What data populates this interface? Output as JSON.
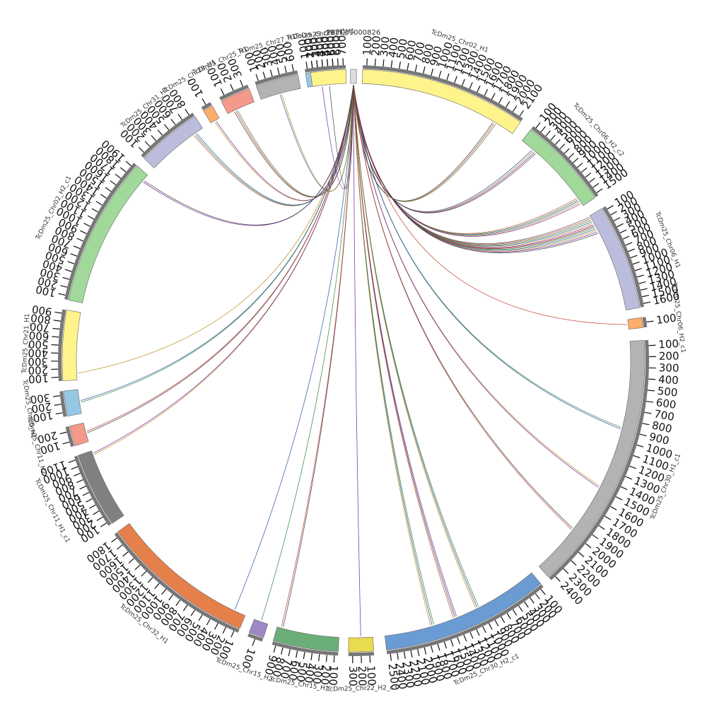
{
  "center_label": "PBFC01000826",
  "segments": [
    {
      "name": "TcDm25_Chr02_H1",
      "color": "#FFF38C",
      "ticks": [
        "100",
        "200",
        "300",
        "400",
        "500",
        "600",
        "700",
        "800",
        "900",
        "1000",
        "1100",
        "1200",
        "1300",
        "1400",
        "1500",
        "1600",
        "1700",
        "1800",
        "1900",
        "2000",
        "2100"
      ]
    },
    {
      "name": "TcDm25_Chr06_H2_c2",
      "color": "#A1D99B",
      "ticks": [
        "100",
        "200",
        "300",
        "400",
        "500",
        "600",
        "700",
        "800",
        "900",
        "1000",
        "1100",
        "1200",
        "1300",
        "1400",
        "1500"
      ]
    },
    {
      "name": "TcDm25_Chr06_H1",
      "color": "#BCBDDC",
      "ticks": [
        "100",
        "200",
        "300",
        "400",
        "500",
        "600",
        "700",
        "800",
        "900",
        "1000",
        "1100",
        "1200",
        "1300",
        "1400",
        "1500",
        "1600"
      ]
    },
    {
      "name": "TcDm25_Chr06_H2_c1",
      "color": "#FDAE6B",
      "ticks": [
        "100"
      ]
    },
    {
      "name": "TcDm25_Chr30_H1_c1",
      "color": "#B3B3B3",
      "ticks": [
        "100",
        "200",
        "300",
        "400",
        "500",
        "600",
        "700",
        "800",
        "900",
        "1000",
        "1100",
        "1200",
        "1300",
        "1400",
        "1500",
        "1600",
        "1700",
        "1800",
        "1900",
        "2000",
        "2100",
        "2200",
        "2300",
        "2400"
      ]
    },
    {
      "name": "TcDm25_Chr30_H2_c1",
      "color": "#6A9BD3",
      "ticks": [
        "100",
        "200",
        "300",
        "400",
        "500",
        "600",
        "700",
        "800",
        "900",
        "1000",
        "1100",
        "1200",
        "1300",
        "1400",
        "1500",
        "1600",
        "1700",
        "1800",
        "1900",
        "2000",
        "2100",
        "2200",
        "2300",
        "2400",
        "2500"
      ]
    },
    {
      "name": "TcDm25_Chr22_H2_c3",
      "color": "#E8DB4E",
      "ticks": [
        "100",
        "200",
        "300"
      ]
    },
    {
      "name": "TcDm25_Chr15_H1",
      "color": "#6BAE7A",
      "ticks": [
        "100",
        "200",
        "300",
        "400",
        "500",
        "600",
        "700",
        "800",
        "900"
      ]
    },
    {
      "name": "TcDm25_Chr15_H2",
      "color": "#9E88C6",
      "ticks": [
        "100"
      ]
    },
    {
      "name": "TcDm25_Chr32_H1",
      "color": "#E6804A",
      "ticks": [
        "100",
        "200",
        "300",
        "400",
        "500",
        "600",
        "700",
        "800",
        "900",
        "1000",
        "1100",
        "1200",
        "1300",
        "1400",
        "1500",
        "1600",
        "1700",
        "1800"
      ]
    },
    {
      "name": "TcDm25_Chr11_H1_c1",
      "color": "#808080",
      "ticks": [
        "100",
        "200",
        "300",
        "400",
        "500",
        "600",
        "700",
        "800",
        "900",
        "1000",
        "1100"
      ]
    },
    {
      "name": "TcDm25_Chr11_H2",
      "color": "#F5998A",
      "ticks": [
        "100",
        "200"
      ]
    },
    {
      "name": "TcDm25_Chr05_H1",
      "color": "#96C8E6",
      "ticks": [
        "100",
        "200",
        "300"
      ]
    },
    {
      "name": "TcDm25_Chr21_H1",
      "color": "#FFF38C",
      "ticks": [
        "100",
        "200",
        "300",
        "400",
        "500",
        "600",
        "700",
        "800",
        "900"
      ]
    },
    {
      "name": "TcDm25_Chr02_H2_c1",
      "color": "#A1D99B",
      "ticks": [
        "100",
        "200",
        "300",
        "400",
        "500",
        "600",
        "700",
        "800",
        "900",
        "1000",
        "1100",
        "1200",
        "1300",
        "1400",
        "1500",
        "1600",
        "1700",
        "1800",
        "1900"
      ]
    },
    {
      "name": "TcDm25_Chr31_H1",
      "color": "#BCBDDC",
      "ticks": [
        "100",
        "200",
        "300",
        "400",
        "500",
        "600",
        "700",
        "800"
      ]
    },
    {
      "name": "TcDm25_Chr28_H1",
      "color": "#FDAE6B",
      "ticks": [
        "100"
      ]
    },
    {
      "name": "TcDm25_Chr25_H1",
      "color": "#F5998A",
      "ticks": [
        "100",
        "200",
        "300"
      ]
    },
    {
      "name": "TcDm25_Chr27_H1",
      "color": "#B3B3B3",
      "ticks": [
        "100",
        "200",
        "300",
        "400",
        "500",
        "600"
      ]
    },
    {
      "name": "TcDm25_Chr23_H1",
      "color": "#96C8E6",
      "ticks": [
        "100",
        "200",
        "300",
        "400",
        "500",
        "600"
      ]
    },
    {
      "name": "TcDm25_Chr13_H1",
      "color": "#FFF38C",
      "ticks": [
        "100",
        "200",
        "300",
        "400",
        "500",
        "600",
        "700"
      ]
    },
    {
      "name": "PBFC01000826",
      "color": "#DDDDDD",
      "ticks": []
    }
  ],
  "links": [
    {
      "target": "TcDm25_Chr02_H1",
      "pos": 0.87,
      "count": 3
    },
    {
      "target": "TcDm25_Chr06_H2_c2",
      "pos": 0.18,
      "count": 4
    },
    {
      "target": "TcDm25_Chr06_H2_c2",
      "pos": 0.93,
      "count": 5
    },
    {
      "target": "TcDm25_Chr06_H1",
      "pos": 0.06,
      "count": 7
    },
    {
      "target": "TcDm25_Chr06_H1",
      "pos": 0.15,
      "count": 6
    },
    {
      "target": "TcDm25_Chr06_H2_c1",
      "pos": 0.5,
      "count": 1
    },
    {
      "target": "TcDm25_Chr30_H1_c1",
      "pos": 0.35,
      "count": 2
    },
    {
      "target": "TcDm25_Chr30_H1_c1",
      "pos": 0.6,
      "count": 2
    },
    {
      "target": "TcDm25_Chr30_H1_c1",
      "pos": 0.8,
      "count": 2
    },
    {
      "target": "TcDm25_Chr30_H2_c1",
      "pos": 0.4,
      "count": 3
    },
    {
      "target": "TcDm25_Chr30_H2_c1",
      "pos": 0.55,
      "count": 3
    },
    {
      "target": "TcDm25_Chr30_H2_c1",
      "pos": 0.7,
      "count": 3
    },
    {
      "target": "TcDm25_Chr22_H2_c3",
      "pos": 0.5,
      "count": 1
    },
    {
      "target": "TcDm25_Chr15_H1",
      "pos": 0.92,
      "count": 2
    },
    {
      "target": "TcDm25_Chr15_H2",
      "pos": 0.5,
      "count": 1
    },
    {
      "target": "TcDm25_Chr32_H1",
      "pos": 0.08,
      "count": 1
    },
    {
      "target": "TcDm25_Chr11_H1_c1",
      "pos": 0.95,
      "count": 2
    },
    {
      "target": "TcDm25_Chr11_H2",
      "pos": 0.5,
      "count": 2
    },
    {
      "target": "TcDm25_Chr05_H1",
      "pos": 0.5,
      "count": 2
    },
    {
      "target": "TcDm25_Chr21_H1",
      "pos": 0.1,
      "count": 1
    },
    {
      "target": "TcDm25_Chr02_H2_c1",
      "pos": 0.95,
      "count": 2
    },
    {
      "target": "TcDm25_Chr31_H1",
      "pos": 0.85,
      "count": 3
    },
    {
      "target": "TcDm25_Chr28_H1",
      "pos": 0.5,
      "count": 2
    },
    {
      "target": "TcDm25_Chr25_H1",
      "pos": 0.3,
      "count": 3
    },
    {
      "target": "TcDm25_Chr27_H1",
      "pos": 0.5,
      "count": 2
    },
    {
      "target": "TcDm25_Chr23_H1",
      "pos": 0.5,
      "count": 1
    },
    {
      "target": "TcDm25_Chr13_H1",
      "pos": 0.5,
      "count": 1
    }
  ],
  "link_colors": [
    "#333333",
    "#c0392b",
    "#2e7d32",
    "#1f4e9a",
    "#b8860b",
    "#6a1b9a"
  ]
}
